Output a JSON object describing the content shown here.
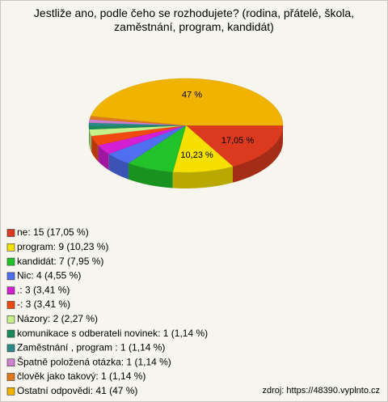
{
  "chart_data": {
    "type": "pie3d",
    "title": "Jestliže ano, podle čeho se rozhodujete? (rodina, přátelé, škola, zaměstnání, program, kandidát)",
    "legend_labels": [
      "ne: 15 (17,05 %)",
      "program: 9 (10,23 %)",
      "kandidát: 7 (7,95 %)",
      "Nic: 4 (4,55 %)",
      ".: 3 (3,41 %)",
      "-: 3 (3,41 %)",
      "Názory: 2 (2,27 %)",
      "komunikace s odberateli novinek: 1 (1,14 %)",
      "Zaměstnání , program : 1 (1,14 %)",
      "Špatně položená otázka: 1 (1,14 %)",
      "člověk jako takový: 1 (1,14 %)",
      "Ostatní odpovědi: 41 (47 %)"
    ],
    "values": [
      17.05,
      10.23,
      7.95,
      4.55,
      3.41,
      3.41,
      2.27,
      1.14,
      1.14,
      1.14,
      1.14,
      47
    ],
    "value_labels": [
      "17,05 %",
      "10,23 %",
      null,
      null,
      null,
      null,
      null,
      null,
      null,
      null,
      null,
      "47 %"
    ],
    "colors": [
      "#dc3a1e",
      "#f5e000",
      "#22c22a",
      "#4f6ff0",
      "#d41fd4",
      "#f04a10",
      "#c6f08a",
      "#1a8a5a",
      "#2a8a8a",
      "#d080d0",
      "#e07820",
      "#f0b400"
    ],
    "source": "zdroj: https://48390.vyplnto.cz"
  }
}
